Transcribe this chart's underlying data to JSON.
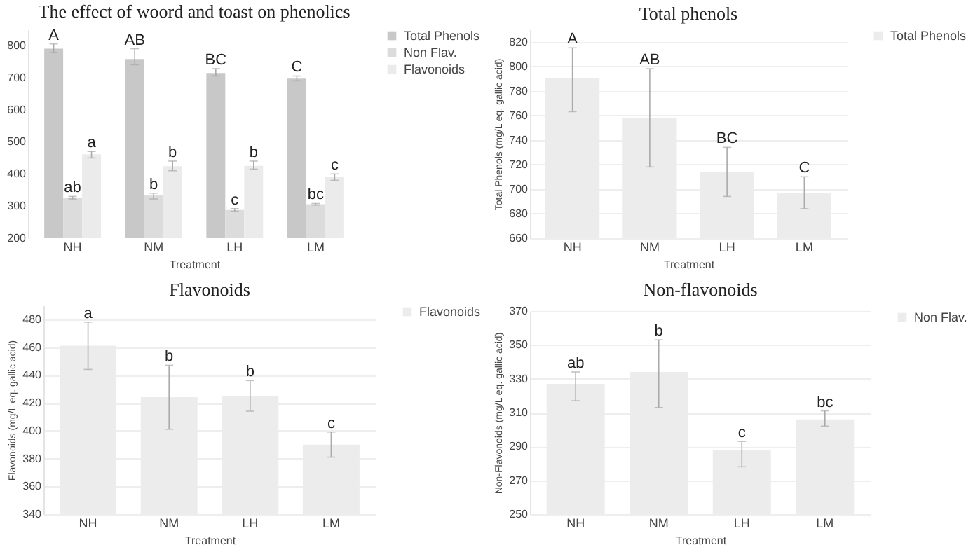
{
  "chart_data": [
    {
      "type": "bar",
      "title": "The effect of woord and toast on phenolics",
      "xlabel": "Treatment",
      "categories": [
        "NH",
        "NM",
        "LH",
        "LM"
      ],
      "ylim": [
        200,
        850
      ],
      "yticks": [
        200,
        300,
        400,
        500,
        600,
        700,
        800
      ],
      "legend": "right",
      "series": [
        {
          "name": "Total Phenols",
          "color": "#c8c8c8",
          "values": [
            790,
            758,
            714,
            697
          ],
          "errors": [
            [
              778,
              805
            ],
            [
              740,
              790
            ],
            [
              705,
              728
            ],
            [
              690,
              705
            ]
          ],
          "value_labels": [
            "A",
            "AB",
            "BC",
            "C"
          ]
        },
        {
          "name": "Non Flav.",
          "color": "#dcdcdc",
          "values": [
            326,
            334,
            288,
            306
          ],
          "errors": [
            [
              322,
              330
            ],
            [
              322,
              340
            ],
            [
              284,
              292
            ],
            [
              303,
              308
            ]
          ],
          "value_labels": [
            "ab",
            "b",
            "c",
            "bc"
          ]
        },
        {
          "name": "Flavonoids",
          "color": "#ebebeb",
          "values": [
            461,
            424,
            425,
            390
          ],
          "errors": [
            [
              450,
              470
            ],
            [
              410,
              440
            ],
            [
              415,
              440
            ],
            [
              380,
              400
            ]
          ],
          "value_labels": [
            "a",
            "b",
            "b",
            "c"
          ]
        }
      ]
    },
    {
      "type": "bar",
      "title": "Total phenols",
      "xlabel": "Treatment",
      "ylabel": "Total Phenols (mg/L eq. gallic acid)",
      "categories": [
        "NH",
        "NM",
        "LH",
        "LM"
      ],
      "ylim": [
        660,
        830
      ],
      "yticks": [
        660,
        680,
        700,
        720,
        740,
        760,
        780,
        800,
        820
      ],
      "grid": "y",
      "legend": "right",
      "series": [
        {
          "name": "Total Phenols",
          "color": "#ececec",
          "values": [
            790,
            758,
            714,
            697
          ],
          "errors": [
            [
              763,
              815
            ],
            [
              718,
              798
            ],
            [
              694,
              734
            ],
            [
              684,
              710
            ]
          ],
          "value_labels": [
            "A",
            "AB",
            "BC",
            "C"
          ]
        }
      ]
    },
    {
      "type": "bar",
      "title": "Flavonoids",
      "xlabel": "Treatment",
      "ylabel": "Flavonoids (mg/L eq. gallic acid)",
      "categories": [
        "NH",
        "NM",
        "LH",
        "LM"
      ],
      "ylim": [
        340,
        490
      ],
      "yticks": [
        340,
        360,
        380,
        400,
        420,
        440,
        460,
        480
      ],
      "grid": "y",
      "legend": "right",
      "series": [
        {
          "name": "Flavonoids",
          "color": "#ececec",
          "values": [
            461,
            424,
            425,
            390
          ],
          "errors": [
            [
              444,
              478
            ],
            [
              401,
              447
            ],
            [
              414,
              436
            ],
            [
              381,
              399
            ]
          ],
          "value_labels": [
            "a",
            "b",
            "b",
            "c"
          ]
        }
      ]
    },
    {
      "type": "bar",
      "title": "Non-flavonoids",
      "xlabel": "Treatment",
      "ylabel": "Non-Flavonoids (mg/L eq. gallic acid)",
      "categories": [
        "NH",
        "NM",
        "LH",
        "LM"
      ],
      "ylim": [
        250,
        370
      ],
      "yticks": [
        250,
        270,
        290,
        310,
        330,
        350,
        370
      ],
      "grid": "y",
      "legend": "right",
      "series": [
        {
          "name": "Non Flav.",
          "color": "#ececec",
          "values": [
            327,
            334,
            288,
            306
          ],
          "errors": [
            [
              317,
              334
            ],
            [
              313,
              353
            ],
            [
              278,
              293
            ],
            [
              302,
              311
            ]
          ],
          "value_labels": [
            "ab",
            "b",
            "c",
            "bc"
          ]
        }
      ]
    }
  ]
}
